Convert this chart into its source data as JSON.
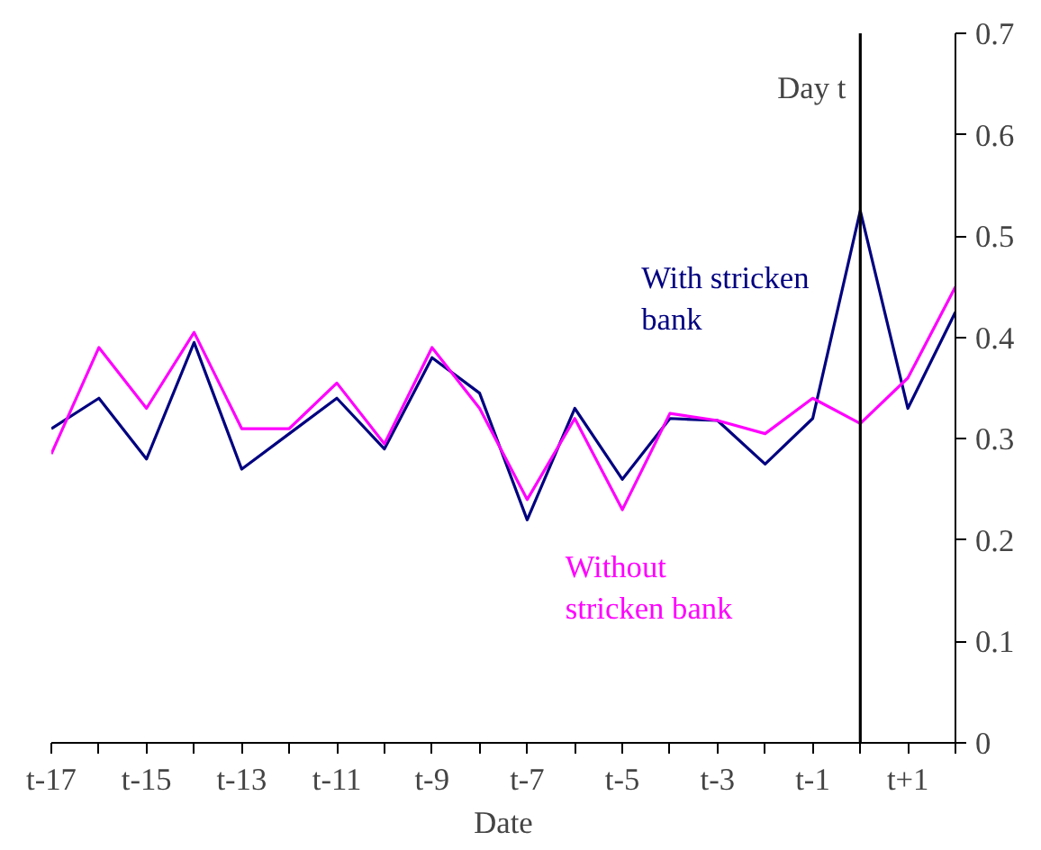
{
  "chart_data": {
    "type": "line",
    "xlabel": "Date",
    "categories": [
      "t-17",
      null,
      "t-15",
      null,
      "t-13",
      null,
      "t-11",
      null,
      "t-9",
      null,
      "t-7",
      null,
      "t-5",
      null,
      "t-3",
      null,
      "t-1",
      null,
      "t+1",
      null
    ],
    "series": [
      {
        "name": "With stricken bank",
        "color": "#000080",
        "values": [
          0.31,
          0.34,
          0.28,
          0.395,
          0.27,
          0.305,
          0.34,
          0.29,
          0.38,
          0.345,
          0.22,
          0.33,
          0.26,
          0.32,
          0.318,
          0.275,
          0.32,
          0.525,
          0.33,
          0.425
        ]
      },
      {
        "name": "Without stricken bank",
        "color": "#ff00ff",
        "values": [
          0.285,
          0.39,
          0.33,
          0.405,
          0.31,
          0.31,
          0.355,
          0.295,
          0.39,
          0.33,
          0.24,
          0.32,
          0.23,
          0.325,
          0.318,
          0.305,
          0.34,
          0.315,
          0.36,
          0.45
        ]
      }
    ],
    "ylim": [
      0,
      0.7
    ],
    "yticks": [
      0,
      0.1,
      0.2,
      0.3,
      0.4,
      0.5,
      0.6,
      0.7
    ],
    "annotations": [
      "Day t"
    ],
    "marker": "none",
    "line_style": "solid"
  }
}
